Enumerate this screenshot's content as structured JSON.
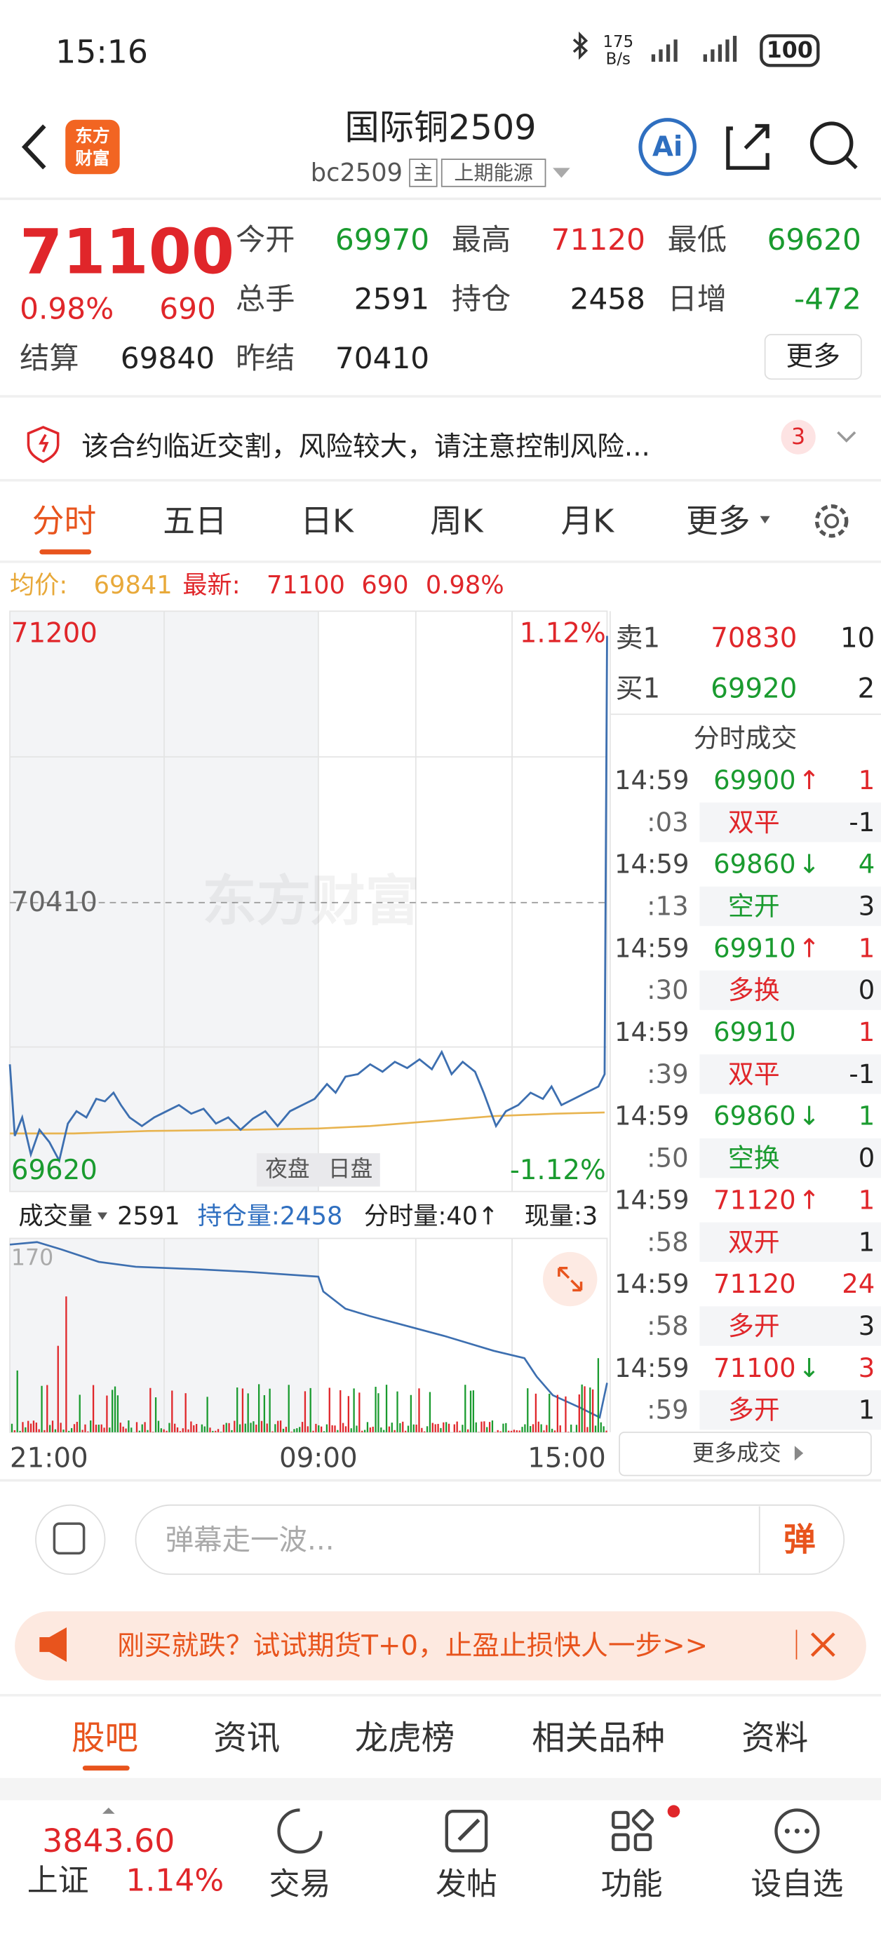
{
  "status_bar": {
    "time": "15:16",
    "net_speed": "175",
    "net_unit": "B/s",
    "battery": "100"
  },
  "header": {
    "logo_top": "东方",
    "logo_bottom": "财富",
    "title": "国际铜2509",
    "code": "bc2509",
    "tag_main": "主",
    "tag_exchange": "上期能源",
    "ai": "Ai"
  },
  "quote": {
    "price": "71100",
    "change_pct": "0.98%",
    "change": "690",
    "fields": [
      {
        "label": "今开",
        "value": "69970",
        "color": "#1a9b2f"
      },
      {
        "label": "最高",
        "value": "71120",
        "color": "#e0262a"
      },
      {
        "label": "最低",
        "value": "69620",
        "color": "#1a9b2f"
      },
      {
        "label": "总手",
        "value": "2591",
        "color": "#222222"
      },
      {
        "label": "持仓",
        "value": "2458",
        "color": "#222222"
      },
      {
        "label": "日增",
        "value": "-472",
        "color": "#1a9b2f"
      },
      {
        "label": "结算",
        "value": "69840",
        "color": "#222222"
      },
      {
        "label": "昨结",
        "value": "70410",
        "color": "#222222"
      }
    ],
    "more": "更多"
  },
  "notice": {
    "text": "该合约临近交割，风险较大，请注意控制风险...",
    "count": "3"
  },
  "tabs": {
    "items": [
      "分时",
      "五日",
      "日K",
      "周K",
      "月K",
      "更多"
    ],
    "active": 0
  },
  "summary": {
    "avg_label": "均价:",
    "avg": "69841",
    "latest_label": "最新:",
    "latest": "71100",
    "change": "690",
    "change_pct": "0.98%"
  },
  "chart": {
    "y_top": "71200",
    "y_mid": "70410",
    "y_bottom": "69620",
    "pct_top": "1.12%",
    "pct_bottom": "-1.12%",
    "watermark": "东方财富",
    "session_night": "夜盘",
    "session_day": "日盘",
    "x_labels": [
      "21:00",
      "09:00",
      "15:00"
    ]
  },
  "volume": {
    "label": "成交量",
    "value": "2591",
    "open_interest": "持仓量:2458",
    "tick_volume": "分时量:40↑",
    "current": "现量:3",
    "axis_top": "170"
  },
  "orderbook": {
    "sell_label": "卖1",
    "sell_price": "70830",
    "sell_volume": "10",
    "buy_label": "买1",
    "buy_price": "69920",
    "buy_volume": "2",
    "title": "分时成交",
    "more": "更多成交",
    "trades": [
      {
        "time": "14:59",
        "price": "69900",
        "arrow": "↑",
        "volume": "1",
        "sub_time": ":03",
        "action": "双平",
        "sub_volume": "-1",
        "price_color": "#1a9b2f",
        "arrow_color": "#e0262a",
        "volume_color": "#e0262a",
        "action_color": "#e0262a"
      },
      {
        "time": "14:59",
        "price": "69860",
        "arrow": "↓",
        "volume": "4",
        "sub_time": ":13",
        "action": "空开",
        "sub_volume": "3",
        "price_color": "#1a9b2f",
        "arrow_color": "#1a9b2f",
        "volume_color": "#1a9b2f",
        "action_color": "#1a9b2f"
      },
      {
        "time": "14:59",
        "price": "69910",
        "arrow": "↑",
        "volume": "1",
        "sub_time": ":30",
        "action": "多换",
        "sub_volume": "0",
        "price_color": "#1a9b2f",
        "arrow_color": "#e0262a",
        "volume_color": "#e0262a",
        "action_color": "#e0262a"
      },
      {
        "time": "14:59",
        "price": "69910",
        "volume": "1",
        "sub_time": ":39",
        "action": "双平",
        "sub_volume": "-1",
        "price_color": "#1a9b2f",
        "volume_color": "#e0262a",
        "action_color": "#e0262a"
      },
      {
        "time": "14:59",
        "price": "69860",
        "arrow": "↓",
        "volume": "1",
        "sub_time": ":50",
        "action": "空换",
        "sub_volume": "0",
        "price_color": "#1a9b2f",
        "arrow_color": "#1a9b2f",
        "volume_color": "#1a9b2f",
        "action_color": "#1a9b2f"
      },
      {
        "time": "14:59",
        "price": "71120",
        "arrow": "↑",
        "volume": "1",
        "sub_time": ":58",
        "action": "双开",
        "sub_volume": "1",
        "price_color": "#e0262a",
        "arrow_color": "#e0262a",
        "volume_color": "#e0262a",
        "action_color": "#e0262a"
      },
      {
        "time": "14:59",
        "price": "71120",
        "volume": "24",
        "sub_time": ":58",
        "action": "多开",
        "sub_volume": "3",
        "price_color": "#e0262a",
        "volume_color": "#e0262a",
        "action_color": "#e0262a"
      },
      {
        "time": "14:59",
        "price": "71100",
        "arrow": "↓",
        "volume": "3",
        "sub_time": ":59",
        "action": "多开",
        "sub_volume": "1",
        "price_color": "#e0262a",
        "arrow_color": "#1a9b2f",
        "volume_color": "#e0262a",
        "action_color": "#e0262a"
      }
    ]
  },
  "comment": {
    "placeholder": "弹幕走一波...",
    "button": "弹"
  },
  "banner": {
    "text": "刚买就跌？试试期货T+0，止盈止损快人一步>>"
  },
  "bottom_tabs": {
    "items": [
      "股吧",
      "资讯",
      "龙虎榜",
      "相关品种",
      "资料"
    ],
    "active": 0
  },
  "nav": {
    "index_value": "3843.60",
    "index_name": "上证",
    "index_pct": "1.14%",
    "items": [
      "交易",
      "发帖",
      "功能",
      "设自选"
    ]
  }
}
